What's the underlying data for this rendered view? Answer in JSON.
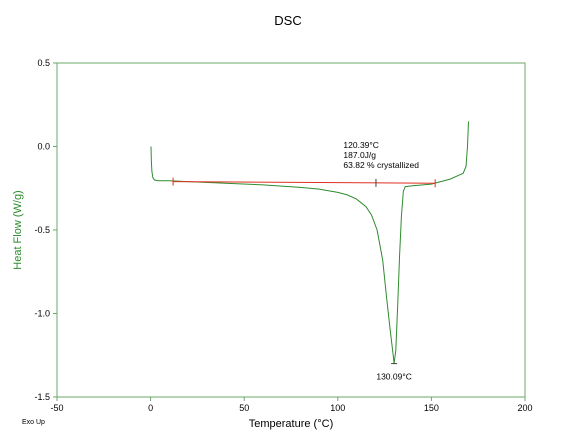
{
  "chart_data": {
    "type": "line",
    "title": "DSC",
    "xlabel": "Temperature (°C)",
    "ylabel": "Heat Flow (W/g)",
    "xlim": [
      -50,
      200
    ],
    "ylim": [
      -1.5,
      0.5
    ],
    "x_ticks": [
      "-50",
      "0",
      "50",
      "100",
      "150",
      "200"
    ],
    "y_ticks": [
      "0.5",
      "0.0",
      "-0.5",
      "-1.0",
      "-1.5"
    ],
    "grid": false,
    "legend": "none",
    "corner_note": "Exo Up",
    "colors": {
      "curve": "#2e8b2e",
      "baseline": "#e03020",
      "axis_frame": "#6aa86a",
      "text": "#000000"
    },
    "series": [
      {
        "points": [
          [
            0.2,
            0.0
          ],
          [
            0.4,
            -0.08
          ],
          [
            0.7,
            -0.15
          ],
          [
            1.2,
            -0.185
          ],
          [
            2,
            -0.2
          ],
          [
            4,
            -0.205
          ],
          [
            10,
            -0.205
          ],
          [
            20,
            -0.21
          ],
          [
            40,
            -0.22
          ],
          [
            60,
            -0.23
          ],
          [
            80,
            -0.245
          ],
          [
            90,
            -0.255
          ],
          [
            100,
            -0.275
          ],
          [
            105,
            -0.29
          ],
          [
            110,
            -0.315
          ],
          [
            115,
            -0.36
          ],
          [
            118,
            -0.41
          ],
          [
            121,
            -0.5
          ],
          [
            124,
            -0.68
          ],
          [
            126,
            -0.9
          ],
          [
            128,
            -1.1
          ],
          [
            129.5,
            -1.24
          ],
          [
            130.09,
            -1.3
          ],
          [
            131,
            -1.22
          ],
          [
            132,
            -0.95
          ],
          [
            133,
            -0.65
          ],
          [
            134,
            -0.42
          ],
          [
            135,
            -0.27
          ],
          [
            136,
            -0.24
          ],
          [
            140,
            -0.235
          ],
          [
            150,
            -0.225
          ],
          [
            160,
            -0.195
          ],
          [
            165,
            -0.17
          ],
          [
            167,
            -0.16
          ],
          [
            168.5,
            -0.12
          ],
          [
            169.3,
            0.0
          ],
          [
            169.8,
            0.15
          ]
        ]
      }
    ],
    "baseline": {
      "from": [
        12,
        -0.21
      ],
      "to": [
        152,
        -0.22
      ],
      "marks": [
        12,
        120.39,
        152
      ]
    },
    "annotations": {
      "peak_label": "130.09°C",
      "peak_point": [
        130.09,
        -1.3
      ],
      "integration_lines": [
        "120.39°C",
        "187.0J/g",
        "63.82 % crystallized"
      ],
      "integration_anchor": [
        103,
        -0.01
      ]
    }
  }
}
